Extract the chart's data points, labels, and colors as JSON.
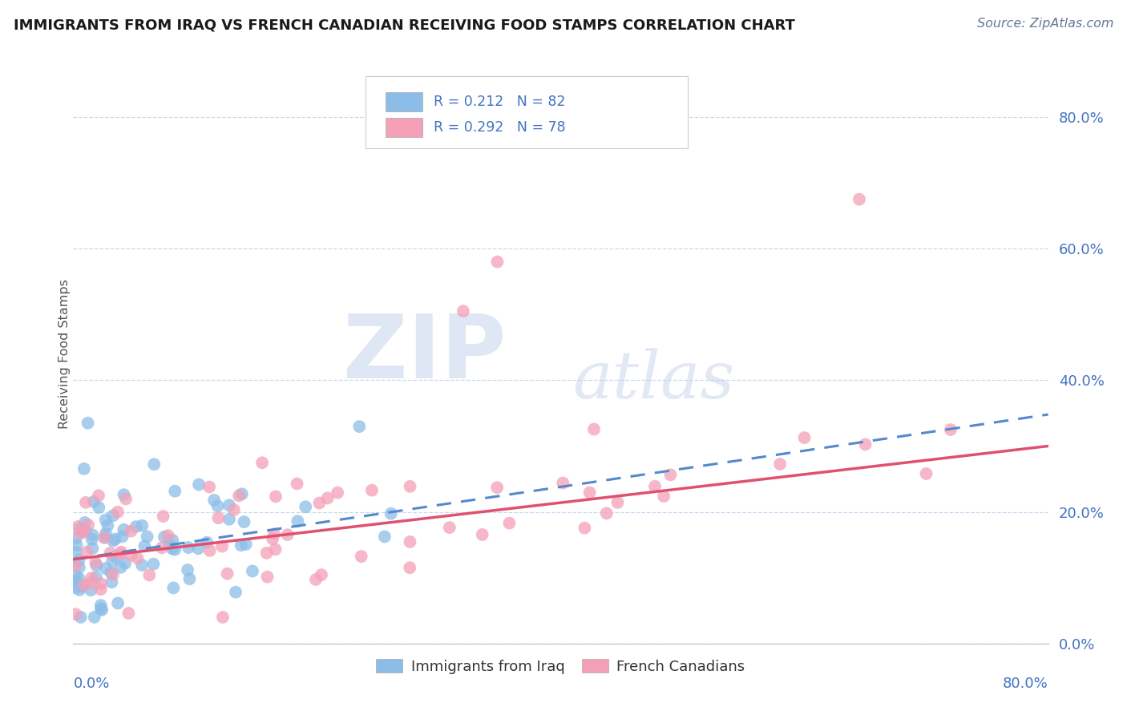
{
  "title": "IMMIGRANTS FROM IRAQ VS FRENCH CANADIAN RECEIVING FOOD STAMPS CORRELATION CHART",
  "source": "Source: ZipAtlas.com",
  "ylabel": "Receiving Food Stamps",
  "blue_R": 0.212,
  "pink_R": 0.292,
  "blue_N": 82,
  "pink_N": 78,
  "blue_color": "#8BBDE8",
  "pink_color": "#F4A0B8",
  "blue_line_color": "#5588CC",
  "pink_line_color": "#E05070",
  "background_color": "#FFFFFF",
  "grid_color": "#C8D8F0",
  "title_color": "#1A1A1A",
  "axis_label_color": "#4472C4",
  "ytick_values": [
    0.0,
    0.2,
    0.4,
    0.6,
    0.8
  ],
  "ytick_labels": [
    "0.0%",
    "20.0%",
    "40.0%",
    "60.0%",
    "80.0%"
  ],
  "xlim": [
    0.0,
    0.8
  ],
  "ylim": [
    0.0,
    0.88
  ],
  "blue_line_x0": 0.0,
  "blue_line_y0": 0.128,
  "blue_line_x1": 0.8,
  "blue_line_y1": 0.348,
  "pink_line_x0": 0.0,
  "pink_line_y0": 0.128,
  "pink_line_x1": 0.8,
  "pink_line_y1": 0.3,
  "watermark_zip_color": "#C8D4EC",
  "watermark_atlas_color": "#C0D0E8",
  "legend_label_blue": "R = 0.212   N = 82",
  "legend_label_pink": "R = 0.292   N = 78",
  "bottom_legend_blue": "Immigrants from Iraq",
  "bottom_legend_pink": "French Canadians"
}
